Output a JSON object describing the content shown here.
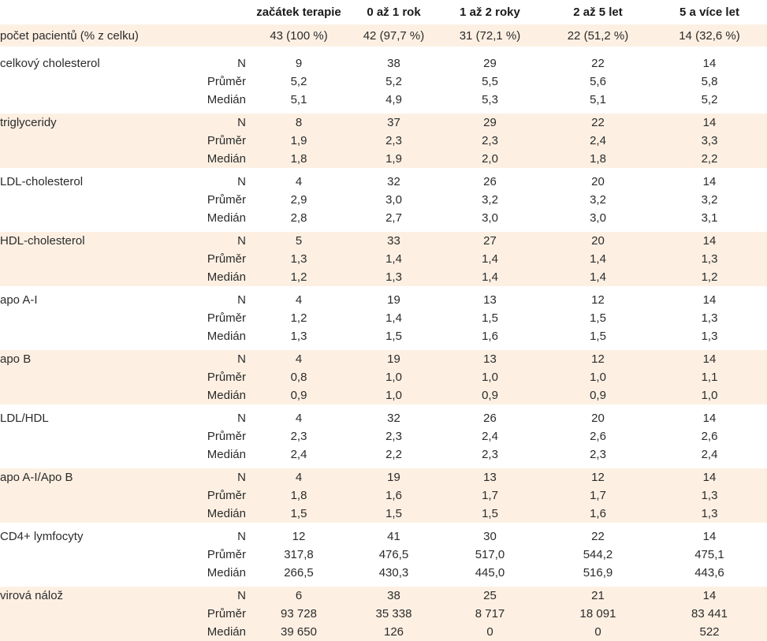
{
  "header": {
    "columns": [
      "začátek terapie",
      "0 až 1 rok",
      "1 až 2 roky",
      "2 až 5 let",
      "5 a více let"
    ]
  },
  "patients": {
    "label": "počet pacientů (% z celku)",
    "values": [
      "43 (100 %)",
      "42 (97,7 %)",
      "31 (72,1 %)",
      "22 (51,2 %)",
      "14 (32,6 %)"
    ]
  },
  "stat_labels": [
    "N",
    "Průměr",
    "Medián"
  ],
  "groups": [
    {
      "name": "celkový cholesterol",
      "shaded": false,
      "rows": [
        [
          "9",
          "38",
          "29",
          "22",
          "14"
        ],
        [
          "5,2",
          "5,2",
          "5,5",
          "5,6",
          "5,8"
        ],
        [
          "5,1",
          "4,9",
          "5,3",
          "5,1",
          "5,2"
        ]
      ]
    },
    {
      "name": "triglyceridy",
      "shaded": true,
      "rows": [
        [
          "8",
          "37",
          "29",
          "22",
          "14"
        ],
        [
          "1,9",
          "2,3",
          "2,3",
          "2,4",
          "3,3"
        ],
        [
          "1,8",
          "1,9",
          "2,0",
          "1,8",
          "2,2"
        ]
      ]
    },
    {
      "name": "LDL-cholesterol",
      "shaded": false,
      "rows": [
        [
          "4",
          "32",
          "26",
          "20",
          "14"
        ],
        [
          "2,9",
          "3,0",
          "3,2",
          "3,2",
          "3,2"
        ],
        [
          "2,8",
          "2,7",
          "3,0",
          "3,0",
          "3,1"
        ]
      ]
    },
    {
      "name": "HDL-cholesterol",
      "shaded": true,
      "rows": [
        [
          "5",
          "33",
          "27",
          "20",
          "14"
        ],
        [
          "1,3",
          "1,4",
          "1,4",
          "1,4",
          "1,3"
        ],
        [
          "1,2",
          "1,3",
          "1,4",
          "1,4",
          "1,2"
        ]
      ]
    },
    {
      "name": "apo A-I",
      "shaded": false,
      "rows": [
        [
          "4",
          "19",
          "13",
          "12",
          "14"
        ],
        [
          "1,2",
          "1,4",
          "1,5",
          "1,5",
          "1,3"
        ],
        [
          "1,3",
          "1,5",
          "1,6",
          "1,5",
          "1,3"
        ]
      ]
    },
    {
      "name": "apo B",
      "shaded": true,
      "rows": [
        [
          "4",
          "19",
          "13",
          "12",
          "14"
        ],
        [
          "0,8",
          "1,0",
          "1,0",
          "1,0",
          "1,1"
        ],
        [
          "0,9",
          "1,0",
          "0,9",
          "0,9",
          "1,0"
        ]
      ]
    },
    {
      "name": "LDL/HDL",
      "shaded": false,
      "rows": [
        [
          "4",
          "32",
          "26",
          "20",
          "14"
        ],
        [
          "2,3",
          "2,3",
          "2,4",
          "2,6",
          "2,6"
        ],
        [
          "2,4",
          "2,2",
          "2,3",
          "2,3",
          "2,4"
        ]
      ]
    },
    {
      "name": "apo A-I/Apo B",
      "shaded": true,
      "rows": [
        [
          "4",
          "19",
          "13",
          "12",
          "14"
        ],
        [
          "1,8",
          "1,6",
          "1,7",
          "1,7",
          "1,3"
        ],
        [
          "1,5",
          "1,5",
          "1,5",
          "1,6",
          "1,3"
        ]
      ]
    },
    {
      "name": "CD4+ lymfocyty",
      "shaded": false,
      "rows": [
        [
          "12",
          "41",
          "30",
          "22",
          "14"
        ],
        [
          "317,8",
          "476,5",
          "517,0",
          "544,2",
          "475,1"
        ],
        [
          "266,5",
          "430,3",
          "445,0",
          "516,9",
          "443,6"
        ]
      ]
    },
    {
      "name": "virová nálož",
      "shaded": true,
      "rows": [
        [
          "6",
          "38",
          "25",
          "21",
          "14"
        ],
        [
          "93 728",
          "35 338",
          "8 717",
          "18 091",
          "83 441"
        ],
        [
          "39 650",
          "126",
          "0",
          "0",
          "522"
        ]
      ]
    }
  ],
  "colors": {
    "shade": "#fdf0e3",
    "text": "#2b2b2b"
  }
}
